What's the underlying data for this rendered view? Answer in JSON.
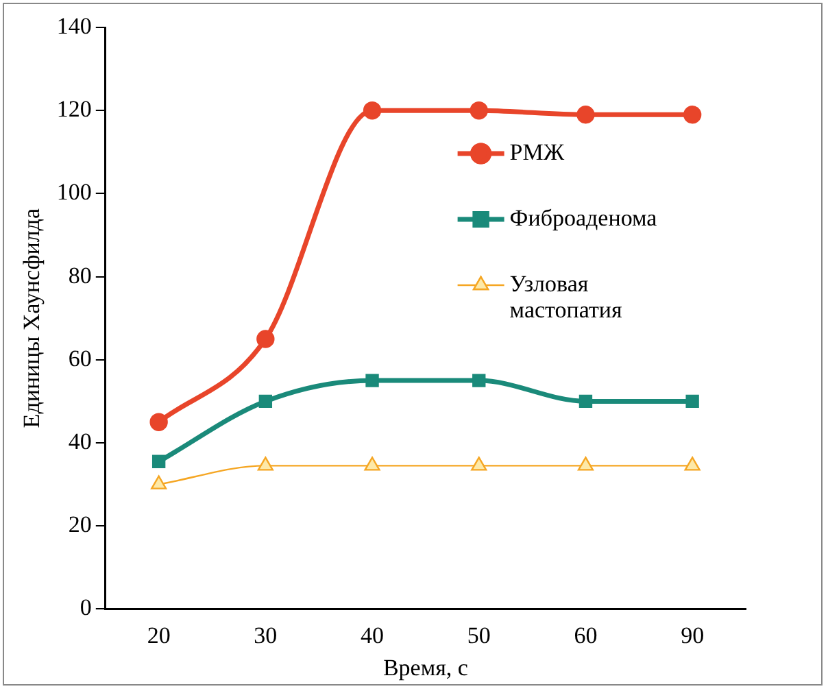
{
  "chart_data": {
    "type": "line",
    "xlabel": "Время, с",
    "ylabel": "Единицы Хаунсфилда",
    "categories": [
      "20",
      "30",
      "40",
      "50",
      "60",
      "90"
    ],
    "series": [
      {
        "name": "РМЖ",
        "color": "#e8452a",
        "marker": "circle",
        "values": [
          45,
          65,
          120,
          120,
          119,
          119
        ]
      },
      {
        "name": "Фиброаденома",
        "color": "#1a8a7a",
        "marker": "square",
        "values": [
          35.5,
          50,
          55,
          55,
          50,
          50
        ]
      },
      {
        "name": "Узловая мастопатия",
        "color": "#f5a623",
        "marker": "triangle",
        "values": [
          30,
          34.5,
          34.5,
          34.5,
          34.5,
          34.5
        ]
      }
    ],
    "ylim": [
      0,
      140
    ],
    "yticks": [
      0,
      20,
      40,
      60,
      80,
      100,
      120,
      140
    ],
    "grid": false,
    "legend": "right"
  }
}
